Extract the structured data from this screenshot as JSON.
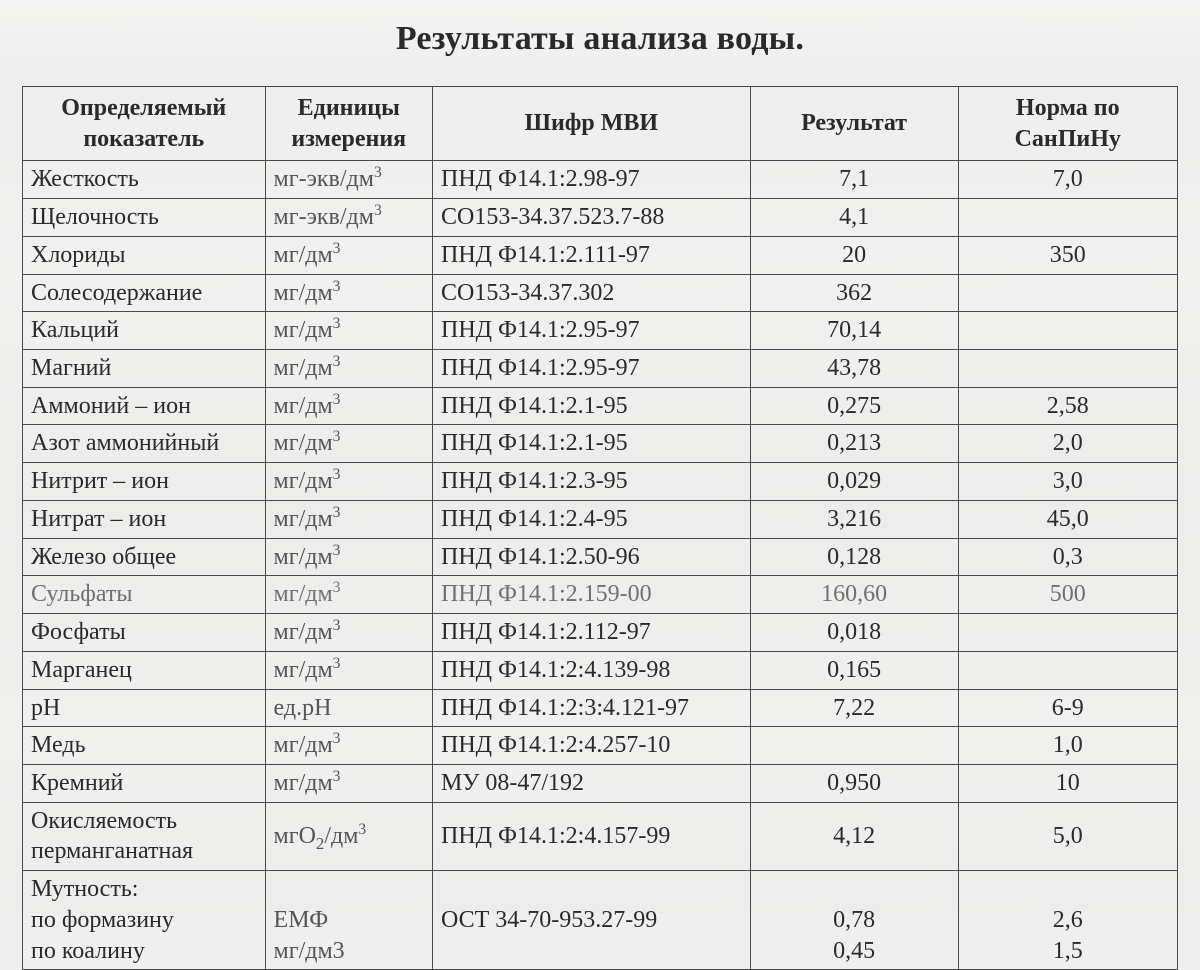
{
  "title": "Результаты анализа воды.",
  "table": {
    "type": "table",
    "background_color": "#eeefee",
    "border_color": "#4a4a4a",
    "text_color": "#2a2a2a",
    "font_family": "Times New Roman",
    "title_fontsize": 34,
    "cell_fontsize": 24,
    "column_widths_pct": [
      21,
      14.5,
      27.5,
      18,
      19
    ],
    "columns": [
      "Определяемый показатель",
      "Единицы измерения",
      "Шифр МВИ",
      "Результат",
      "Норма по СанПиНу"
    ],
    "rows": [
      {
        "param": "Жесткость",
        "unit_html": "мг-экв/дм<sup>3</sup>",
        "code": "ПНД Ф14.1:2.98-97",
        "result": "7,1",
        "norm": "7,0"
      },
      {
        "param": "Щелочность",
        "unit_html": "мг-экв/дм<sup>3</sup>",
        "code": "СО153-34.37.523.7-88",
        "result": "4,1",
        "norm": ""
      },
      {
        "param": "Хлориды",
        "unit_html": "мг/дм<sup>3</sup>",
        "code": "ПНД Ф14.1:2.111-97",
        "result": "20",
        "norm": "350"
      },
      {
        "param": "Солесодержание",
        "unit_html": "мг/дм<sup>3</sup>",
        "code": "СО153-34.37.302",
        "result": "362",
        "norm": ""
      },
      {
        "param": "Кальций",
        "unit_html": "мг/дм<sup>3</sup>",
        "code": "ПНД Ф14.1:2.95-97",
        "result": "70,14",
        "norm": ""
      },
      {
        "param": "Магний",
        "unit_html": "мг/дм<sup>3</sup>",
        "code": "ПНД Ф14.1:2.95-97",
        "result": "43,78",
        "norm": ""
      },
      {
        "param": "Аммоний – ион",
        "unit_html": "мг/дм<sup>3</sup>",
        "code": "ПНД Ф14.1:2.1-95",
        "result": "0,275",
        "norm": "2,58"
      },
      {
        "param": "Азот аммонийный",
        "unit_html": "мг/дм<sup>3</sup>",
        "code": "ПНД Ф14.1:2.1-95",
        "result": "0,213",
        "norm": "2,0"
      },
      {
        "param": "Нитрит – ион",
        "unit_html": "мг/дм<sup>3</sup>",
        "code": "ПНД Ф14.1:2.3-95",
        "result": "0,029",
        "norm": "3,0"
      },
      {
        "param": "Нитрат – ион",
        "unit_html": "мг/дм<sup>3</sup>",
        "code": "ПНД Ф14.1:2.4-95",
        "result": "3,216",
        "norm": "45,0"
      },
      {
        "param": "Железо общее",
        "unit_html": "мг/дм<sup>3</sup>",
        "code": "ПНД Ф14.1:2.50-96",
        "result": "0,128",
        "norm": "0,3"
      },
      {
        "param": "Сульфаты",
        "unit_html": "мг/дм<sup>3</sup>",
        "code": "ПНД Ф14.1:2.159-00",
        "result": "160,60",
        "norm": "500",
        "faded": true
      },
      {
        "param": "Фосфаты",
        "unit_html": "мг/дм<sup>3</sup>",
        "code": "ПНД Ф14.1:2.112-97",
        "result": "0,018",
        "norm": ""
      },
      {
        "param": "Марганец",
        "unit_html": "мг/дм<sup>3</sup>",
        "code": "ПНД Ф14.1:2:4.139-98",
        "result": "0,165",
        "norm": ""
      },
      {
        "param": "рН",
        "unit_html": "ед.рН",
        "code": "ПНД Ф14.1:2:3:4.121-97",
        "result": "7,22",
        "norm": "6-9"
      },
      {
        "param": "Медь",
        "unit_html": "мг/дм<sup>3</sup>",
        "code": "ПНД Ф14.1:2:4.257-10",
        "result": "",
        "norm": "1,0"
      },
      {
        "param": "Кремний",
        "unit_html": "мг/дм<sup>3</sup>",
        "code": "МУ 08-47/192",
        "result": "0,950",
        "norm": "10"
      },
      {
        "param": "Окисляемость перманганатная",
        "unit_html": "мгО<span class=\"sub\">2</span>/дм<sup>3</sup>",
        "code": "ПНД Ф14.1:2:4.157-99",
        "result": "4,12",
        "norm": "5,0",
        "tall": true
      },
      {
        "param_html": "Мутность:<br>по формазину<br>по коалину",
        "unit_html": "<br>ЕМФ<br>мг/дм3",
        "code_html": "<br>ОСТ 34-70-953.27-99<br>&nbsp;",
        "result_html": "<br>0,78<br>0,45",
        "norm_html": "<br>2,6<br>1,5",
        "tall": true,
        "multi": true
      }
    ]
  }
}
